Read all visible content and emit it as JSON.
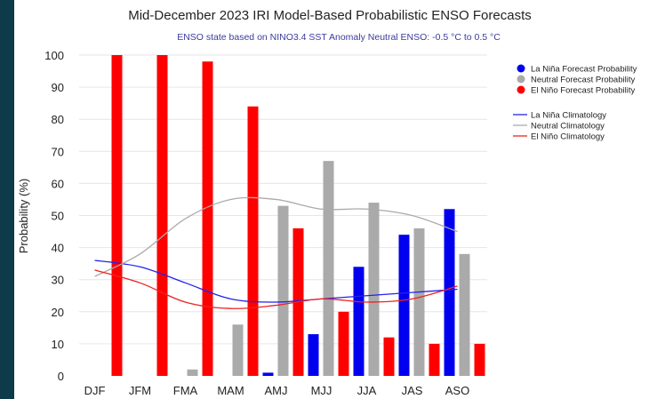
{
  "chart_data": {
    "type": "bar",
    "title": "Mid-December 2023 IRI Model-Based Probabilistic ENSO Forecasts",
    "subtitle": "ENSO state based on NINO3.4 SST Anomaly Neutral ENSO: -0.5 °C to 0.5 °C",
    "xlabel": "",
    "ylabel": "Probability (%)",
    "ylim": [
      0,
      100
    ],
    "yticks": [
      "0",
      "10",
      "20",
      "30",
      "40",
      "50",
      "60",
      "70",
      "80",
      "90",
      "100"
    ],
    "grid": true,
    "legend_position": "right",
    "categories": [
      "DJF",
      "JFM",
      "FMA",
      "MAM",
      "AMJ",
      "MJJ",
      "JJA",
      "JAS",
      "ASO"
    ],
    "series": [
      {
        "name": "La Niña Forecast Probability",
        "kind": "bar",
        "color": "#0000ee",
        "values": [
          0,
          0,
          0,
          0,
          1,
          13,
          34,
          44,
          52
        ]
      },
      {
        "name": "Neutral Forecast Probability",
        "kind": "bar",
        "color": "#aaaaaa",
        "values": [
          0,
          0,
          2,
          16,
          53,
          67,
          54,
          46,
          38
        ]
      },
      {
        "name": "El Niño Forecast Probability",
        "kind": "bar",
        "color": "#ff0000",
        "values": [
          100,
          100,
          98,
          84,
          46,
          20,
          12,
          10,
          10
        ]
      },
      {
        "name": "La Niña Climatology",
        "kind": "line",
        "color": "#2222ee",
        "values": [
          36,
          34,
          29,
          24,
          23,
          24,
          25,
          26,
          27
        ]
      },
      {
        "name": "Neutral Climatology",
        "kind": "line",
        "color": "#aaaaaa",
        "values": [
          31,
          38,
          49,
          55,
          55,
          52,
          52,
          50,
          45
        ]
      },
      {
        "name": "El Niño Climatology",
        "kind": "line",
        "color": "#ee2222",
        "values": [
          33,
          29,
          23,
          21,
          22,
          24,
          23,
          24,
          28
        ]
      }
    ]
  }
}
